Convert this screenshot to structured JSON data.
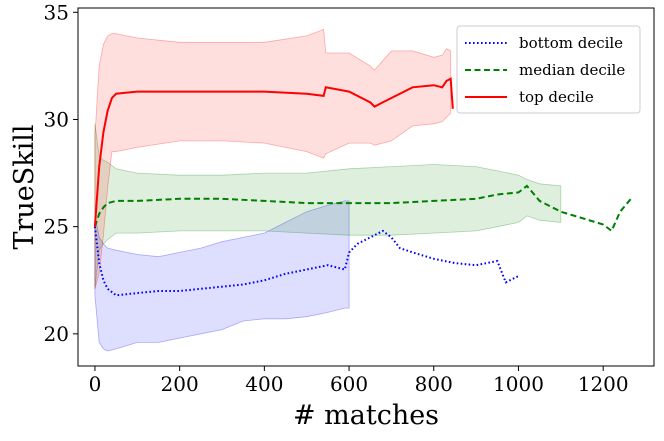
{
  "chart_data": {
    "type": "line",
    "title": "",
    "xlabel": "# matches",
    "ylabel": "TrueSkill",
    "xlim": [
      -40,
      1320
    ],
    "ylim": [
      18.5,
      35.2
    ],
    "x_ticks": [
      0,
      200,
      400,
      600,
      800,
      1000,
      1200
    ],
    "y_ticks": [
      20,
      25,
      30,
      35
    ],
    "legend_position": "top-right",
    "series": [
      {
        "name": "bottom decile",
        "color": "#0000ff",
        "style": "dotted",
        "x": [
          0,
          10,
          20,
          30,
          50,
          100,
          150,
          200,
          250,
          300,
          350,
          400,
          450,
          500,
          550,
          590,
          600,
          620,
          650,
          680,
          700,
          720,
          750,
          800,
          850,
          900,
          950,
          970,
          980,
          1000
        ],
        "y": [
          25.0,
          23.3,
          22.5,
          22.1,
          21.8,
          21.9,
          22.0,
          22.0,
          22.1,
          22.2,
          22.3,
          22.5,
          22.8,
          23.0,
          23.2,
          23.0,
          23.8,
          24.2,
          24.5,
          24.8,
          24.5,
          24.0,
          23.8,
          23.5,
          23.3,
          23.2,
          23.4,
          22.4,
          22.5,
          22.7
        ],
        "band_upper": [
          25.5,
          24.5,
          24.2,
          24.0,
          23.9,
          23.7,
          23.6,
          23.8,
          24.0,
          24.3,
          24.5,
          24.7,
          25.2,
          25.7,
          26.0,
          26.2,
          26.2,
          null,
          null,
          null,
          null,
          null,
          null,
          null,
          null,
          null,
          null,
          null,
          null,
          null
        ],
        "band_lower": [
          21.8,
          19.6,
          19.3,
          19.2,
          19.3,
          19.6,
          19.6,
          19.8,
          20.0,
          20.2,
          20.6,
          20.7,
          20.7,
          20.8,
          21.0,
          21.2,
          21.2,
          null,
          null,
          null,
          null,
          null,
          null,
          null,
          null,
          null,
          null,
          null,
          null,
          null
        ]
      },
      {
        "name": "median decile",
        "color": "#008000",
        "style": "dashed",
        "x": [
          0,
          10,
          20,
          30,
          50,
          100,
          200,
          300,
          400,
          500,
          600,
          700,
          800,
          900,
          950,
          1000,
          1020,
          1050,
          1100,
          1150,
          1200,
          1220,
          1240,
          1270
        ],
        "y": [
          25.0,
          25.6,
          25.9,
          26.1,
          26.2,
          26.2,
          26.3,
          26.3,
          26.2,
          26.1,
          26.1,
          26.1,
          26.2,
          26.3,
          26.5,
          26.6,
          26.9,
          26.2,
          25.7,
          25.4,
          25.1,
          24.8,
          25.7,
          26.4
        ],
        "band_upper": [
          29.8,
          28.3,
          28.1,
          28.0,
          27.7,
          27.5,
          27.4,
          27.4,
          27.5,
          27.5,
          27.7,
          27.8,
          27.9,
          27.8,
          27.6,
          27.4,
          27.2,
          27.0,
          26.9,
          null,
          null,
          null,
          null,
          null
        ],
        "band_lower": [
          22.1,
          23.9,
          24.2,
          24.4,
          24.7,
          24.7,
          24.8,
          24.8,
          24.8,
          24.7,
          24.6,
          24.6,
          24.7,
          24.8,
          25.0,
          25.2,
          25.5,
          25.3,
          25.2,
          null,
          null,
          null,
          null,
          null
        ]
      },
      {
        "name": "top decile",
        "color": "#ff0000",
        "style": "solid",
        "x": [
          0,
          10,
          20,
          30,
          40,
          50,
          100,
          200,
          300,
          400,
          500,
          540,
          545,
          600,
          650,
          660,
          700,
          750,
          800,
          820,
          830,
          840,
          845
        ],
        "y": [
          25.0,
          27.8,
          29.4,
          30.4,
          31.0,
          31.2,
          31.3,
          31.3,
          31.3,
          31.3,
          31.2,
          31.1,
          31.5,
          31.3,
          30.8,
          30.6,
          31.0,
          31.5,
          31.6,
          31.5,
          31.8,
          31.9,
          30.5
        ],
        "band_upper": [
          29.2,
          32.5,
          33.5,
          33.9,
          34.0,
          34.0,
          33.8,
          33.6,
          33.6,
          33.6,
          33.9,
          34.2,
          33.1,
          33.1,
          32.5,
          32.3,
          33.2,
          33.2,
          32.9,
          33.0,
          33.3,
          33.2,
          null
        ],
        "band_lower": [
          22.1,
          22.8,
          24.6,
          26.8,
          28.5,
          28.5,
          28.7,
          29.0,
          29.0,
          28.9,
          28.5,
          28.2,
          28.4,
          28.9,
          28.9,
          28.8,
          29.0,
          29.7,
          29.8,
          29.9,
          30.1,
          30.3,
          null
        ]
      }
    ]
  }
}
